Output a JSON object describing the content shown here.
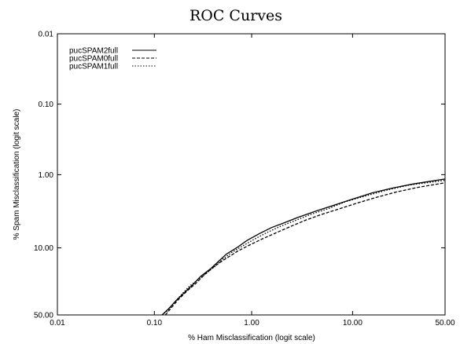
{
  "chart_data": {
    "type": "line",
    "title": "ROC Curves",
    "xlabel": "% Ham Misclassification (logit scale)",
    "ylabel": "% Spam Misclassification (logit scale)",
    "x_scale": "logit",
    "y_scale": "logit",
    "y_inverted": true,
    "xlim": [
      0.01,
      50.0
    ],
    "ylim": [
      50.0,
      0.01
    ],
    "x_ticks": [
      "0.01",
      "0.10",
      "1.00",
      "10.00",
      "50.00"
    ],
    "x_tick_values": [
      0.01,
      0.1,
      1.0,
      10.0,
      50.0
    ],
    "y_ticks": [
      "0.01",
      "0.10",
      "1.00",
      "10.00",
      "50.00"
    ],
    "y_tick_values": [
      0.01,
      0.1,
      1.0,
      10.0,
      50.0
    ],
    "grid": false,
    "legend_position": "top-left",
    "series": [
      {
        "name": "pucSPAM2full",
        "line_style": "solid",
        "color": "#000000",
        "x": [
          0.12,
          0.14,
          0.17,
          0.2,
          0.25,
          0.3,
          0.38,
          0.45,
          0.55,
          0.7,
          0.9,
          1.2,
          1.6,
          2.2,
          3.0,
          4.5,
          6.5,
          10.0,
          15.0,
          22.0,
          32.0,
          50.0
        ],
        "y": [
          50.0,
          45.0,
          38.0,
          33.0,
          27.0,
          22.0,
          18.0,
          15.0,
          12.0,
          10.0,
          8.0,
          6.5,
          5.4,
          4.6,
          3.9,
          3.2,
          2.7,
          2.2,
          1.8,
          1.55,
          1.35,
          1.15
        ]
      },
      {
        "name": "pucSPAM0full",
        "line_style": "dashed",
        "color": "#000000",
        "x": [
          0.13,
          0.15,
          0.18,
          0.22,
          0.27,
          0.33,
          0.4,
          0.48,
          0.58,
          0.72,
          0.95,
          1.3,
          1.8,
          2.5,
          3.5,
          5.0,
          7.5,
          11.0,
          16.0,
          24.0,
          35.0,
          50.0
        ],
        "y": [
          50.0,
          44.0,
          37.0,
          31.0,
          26.0,
          21.0,
          17.5,
          15.0,
          13.0,
          11.0,
          9.2,
          7.6,
          6.3,
          5.2,
          4.3,
          3.6,
          3.0,
          2.5,
          2.1,
          1.75,
          1.5,
          1.3
        ]
      },
      {
        "name": "pucSPAM1full",
        "line_style": "dotted",
        "color": "#000000",
        "x": [
          0.12,
          0.14,
          0.16,
          0.19,
          0.23,
          0.28,
          0.35,
          0.42,
          0.5,
          0.62,
          0.8,
          1.05,
          1.4,
          1.9,
          2.7,
          3.9,
          5.8,
          8.5,
          13.0,
          20.0,
          30.0,
          50.0
        ],
        "y": [
          50.0,
          46.0,
          40.0,
          34.0,
          28.0,
          24.0,
          20.0,
          17.0,
          14.0,
          11.5,
          9.5,
          7.8,
          6.4,
          5.3,
          4.4,
          3.6,
          3.0,
          2.4,
          2.0,
          1.65,
          1.4,
          1.2
        ]
      }
    ]
  }
}
